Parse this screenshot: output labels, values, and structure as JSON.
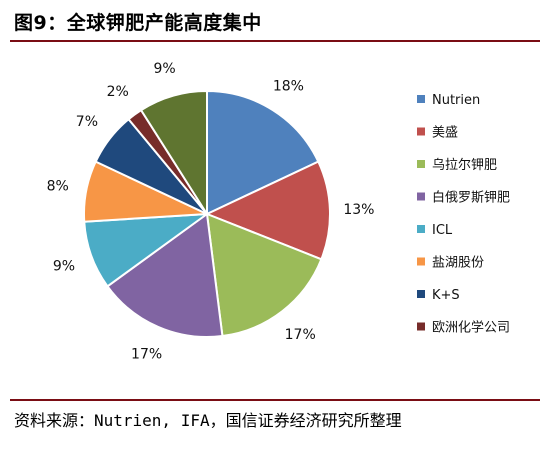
{
  "page": {
    "title": "图9：全球钾肥产能高度集中",
    "source": "资料来源：Nutrien, IFA，国信证券经济研究所整理"
  },
  "chart_data": {
    "type": "pie",
    "title": "",
    "legend_position": "right",
    "slices": [
      {
        "name": "Nutrien",
        "value": 18,
        "label": "18%",
        "color": "#4f81bd"
      },
      {
        "name": "美盛",
        "value": 13,
        "label": "13%",
        "color": "#c0504d"
      },
      {
        "name": "乌拉尔钾肥",
        "value": 17,
        "label": "17%",
        "color": "#9bbb59"
      },
      {
        "name": "白俄罗斯钾肥",
        "value": 17,
        "label": "17%",
        "color": "#8064a2"
      },
      {
        "name": "ICL",
        "value": 9,
        "label": "9%",
        "color": "#4bacc6"
      },
      {
        "name": "盐湖股份",
        "value": 8,
        "label": "8%",
        "color": "#f79646"
      },
      {
        "name": "K+S",
        "value": 7,
        "label": "7%",
        "color": "#1f497d"
      },
      {
        "name": "欧洲化学公司",
        "value": 2,
        "label": "2%",
        "color": "#772c2a"
      },
      {
        "name": "",
        "value": 9,
        "label": "9%",
        "color": "#5f7530"
      }
    ]
  }
}
